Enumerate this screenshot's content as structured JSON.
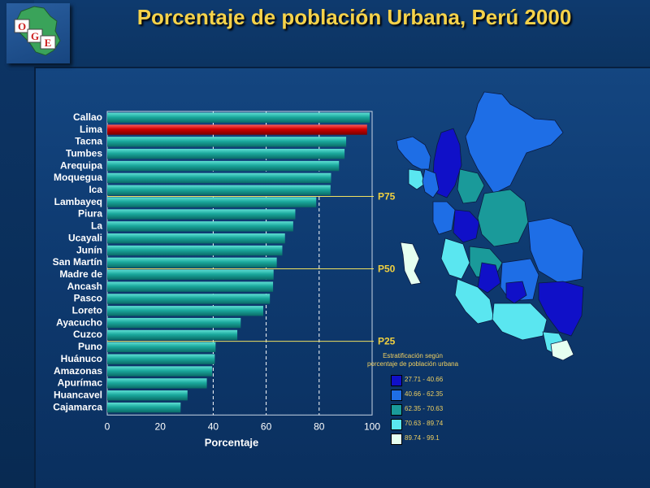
{
  "title": "Porcentaje de población Urbana, Perú 2000",
  "logo": {
    "letters": [
      "O",
      "G",
      "E"
    ]
  },
  "chart_data": {
    "type": "bar",
    "orientation": "horizontal",
    "title": "Porcentaje de población Urbana, Perú 2000",
    "xlabel": "Porcentaje",
    "ylabel": "",
    "xlim": [
      0,
      100
    ],
    "xticks": [
      0,
      20,
      40,
      60,
      80,
      100
    ],
    "grid": "vertical dashed at 40, 60, 80",
    "categories": [
      "Callao",
      "Lima",
      "Tacna",
      "Tumbes",
      "Arequipa",
      "Moquegua",
      "Ica",
      "Lambayeq",
      "Piura",
      "La",
      "Ucayali",
      "Junín",
      "San Martín",
      "Madre de",
      "Ancash",
      "Pasco",
      "Loreto",
      "Ayacucho",
      "Cuzco",
      "Puno",
      "Huánuco",
      "Amazonas",
      "Apurímac",
      "Huancavel",
      "Cajamarca"
    ],
    "values": [
      99.1,
      98.1,
      90.2,
      89.6,
      87.5,
      84.5,
      84.3,
      78.9,
      71.0,
      70.2,
      67.1,
      66.1,
      64.0,
      62.8,
      62.6,
      61.4,
      58.9,
      50.4,
      49.1,
      40.9,
      40.6,
      39.6,
      37.6,
      30.3,
      27.7
    ],
    "highlight": {
      "category": "Lima",
      "color": "#cc0000"
    },
    "bar_color": "#1aa89c",
    "reference_lines": [
      {
        "label": "P75",
        "at_category": "Ica"
      },
      {
        "label": "P50",
        "at_category": "San Martín"
      },
      {
        "label": "P25",
        "at_category": "Cuzco"
      }
    ]
  },
  "legend": {
    "title_line1": "Estratificación según",
    "title_line2": "porcentaje de población urbana",
    "items": [
      {
        "label": "27.71 - 40.66",
        "color": "#1010c8"
      },
      {
        "label": "40.66 - 62.35",
        "color": "#1e6ee6"
      },
      {
        "label": "62.35 - 70.63",
        "color": "#1a9a9a"
      },
      {
        "label": "70.63 - 89.74",
        "color": "#5ae6f0"
      },
      {
        "label": "89.74 - 99.1",
        "color": "#e6fff0"
      }
    ]
  }
}
